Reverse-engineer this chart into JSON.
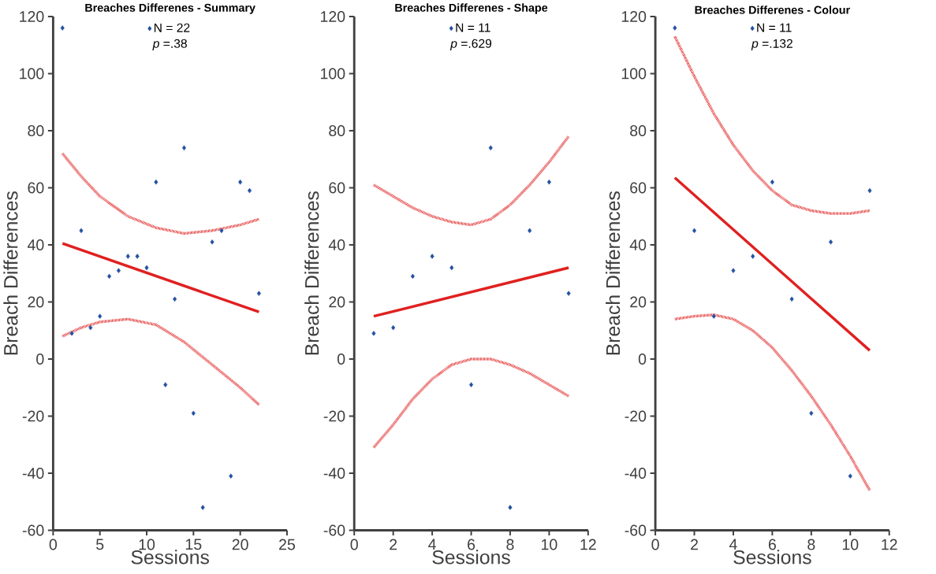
{
  "chart_data": [
    {
      "type": "scatter",
      "title": "Breaches Differenes - Summary",
      "xlabel": "Sessions",
      "ylabel": "Breach Differences",
      "xlim": [
        0,
        25
      ],
      "ylim": [
        -60,
        120
      ],
      "xticks": [
        0,
        5,
        10,
        15,
        20,
        25
      ],
      "yticks": [
        -60,
        -40,
        -20,
        0,
        20,
        40,
        60,
        80,
        100,
        120
      ],
      "legend": "top",
      "annotations": [
        "*p* =.38"
      ],
      "series": [
        {
          "name": "N = 22",
          "marker": "diamond",
          "color": "#2150a0",
          "x": [
            1,
            2,
            3,
            4,
            5,
            6,
            7,
            8,
            9,
            10,
            11,
            12,
            13,
            14,
            15,
            16,
            17,
            18,
            19,
            20,
            21,
            22
          ],
          "values": [
            116,
            9,
            45,
            11,
            15,
            29,
            31,
            36,
            36,
            32,
            62,
            -9,
            21,
            74,
            -19,
            -52,
            41,
            45,
            -41,
            62,
            59,
            23
          ]
        },
        {
          "type": "line",
          "marker": "none",
          "color": "#e02020",
          "line_style": "solid",
          "x": [
            1,
            22
          ],
          "values": [
            40.5,
            16.5
          ]
        },
        {
          "type": "line",
          "marker": "none",
          "color": "#e02020",
          "line_style": "dotted",
          "x": [
            1,
            3,
            5,
            8,
            11,
            14,
            17,
            20,
            22
          ],
          "values": [
            72,
            64,
            57,
            50,
            46,
            44,
            45,
            47,
            49
          ]
        },
        {
          "type": "line",
          "marker": "none",
          "color": "#e02020",
          "line_style": "dotted",
          "x": [
            1,
            3,
            5,
            8,
            11,
            14,
            17,
            20,
            22
          ],
          "values": [
            8,
            11,
            13,
            14,
            12,
            6,
            -2,
            -10,
            -16
          ]
        }
      ]
    },
    {
      "type": "scatter",
      "title": "Breaches Differenes  - Shape",
      "xlabel": "Sessions",
      "ylabel": "Breach Differences",
      "xlim": [
        0,
        12
      ],
      "ylim": [
        -60,
        120
      ],
      "xticks": [
        0,
        2,
        4,
        6,
        8,
        10,
        12
      ],
      "yticks": [
        -60,
        -40,
        -20,
        0,
        20,
        40,
        60,
        80,
        100,
        120
      ],
      "legend": "top",
      "annotations": [
        "*p* =.629"
      ],
      "series": [
        {
          "name": "N = 11",
          "marker": "diamond",
          "color": "#2150a0",
          "x": [
            1,
            2,
            3,
            4,
            5,
            6,
            7,
            8,
            9,
            10,
            11
          ],
          "values": [
            9,
            11,
            29,
            36,
            32,
            -9,
            74,
            -52,
            45,
            62,
            23
          ]
        },
        {
          "type": "line",
          "marker": "none",
          "color": "#e02020",
          "line_style": "solid",
          "x": [
            1,
            11
          ],
          "values": [
            15,
            32
          ]
        },
        {
          "type": "line",
          "marker": "none",
          "color": "#e02020",
          "line_style": "dotted",
          "x": [
            1,
            2,
            3,
            4,
            5,
            6,
            7,
            8,
            9,
            10,
            11
          ],
          "values": [
            61,
            57,
            53,
            50,
            48,
            47,
            49,
            54,
            61,
            69,
            78
          ]
        },
        {
          "type": "line",
          "marker": "none",
          "color": "#e02020",
          "line_style": "dotted",
          "x": [
            1,
            2,
            3,
            4,
            5,
            6,
            7,
            8,
            9,
            10,
            11
          ],
          "values": [
            -31,
            -23,
            -14,
            -7,
            -2,
            0,
            0,
            -2,
            -5,
            -9,
            -13
          ]
        }
      ]
    },
    {
      "type": "scatter",
      "title": "Breaches Differenes  - Colour",
      "xlabel": "Sessions",
      "ylabel": "Breach Differences",
      "xlim": [
        0,
        12
      ],
      "ylim": [
        -60,
        120
      ],
      "xticks": [
        0,
        2,
        4,
        6,
        8,
        10,
        12
      ],
      "yticks": [
        -60,
        -40,
        -20,
        0,
        20,
        40,
        60,
        80,
        100,
        120
      ],
      "legend": "top",
      "annotations": [
        "*p* =.132"
      ],
      "series": [
        {
          "name": "N = 11",
          "marker": "diamond",
          "color": "#2150a0",
          "x": [
            1,
            2,
            3,
            4,
            5,
            6,
            7,
            8,
            9,
            10,
            11
          ],
          "values": [
            116,
            45,
            15,
            31,
            36,
            62,
            21,
            -19,
            41,
            -41,
            59
          ]
        },
        {
          "type": "line",
          "marker": "none",
          "color": "#e02020",
          "line_style": "solid",
          "x": [
            1,
            11
          ],
          "values": [
            63.5,
            3
          ]
        },
        {
          "type": "line",
          "marker": "none",
          "color": "#e02020",
          "line_style": "dotted",
          "x": [
            1,
            2,
            3,
            4,
            5,
            6,
            7,
            8,
            9,
            10,
            11
          ],
          "values": [
            113,
            99,
            86,
            75,
            66,
            59,
            54,
            52,
            51,
            51,
            52
          ]
        },
        {
          "type": "line",
          "marker": "none",
          "color": "#e02020",
          "line_style": "dotted",
          "x": [
            1,
            2,
            3,
            4,
            5,
            6,
            7,
            8,
            9,
            10,
            11
          ],
          "values": [
            14,
            15,
            15.5,
            14,
            10,
            4,
            -4,
            -13,
            -23,
            -34,
            -46
          ]
        }
      ]
    }
  ]
}
